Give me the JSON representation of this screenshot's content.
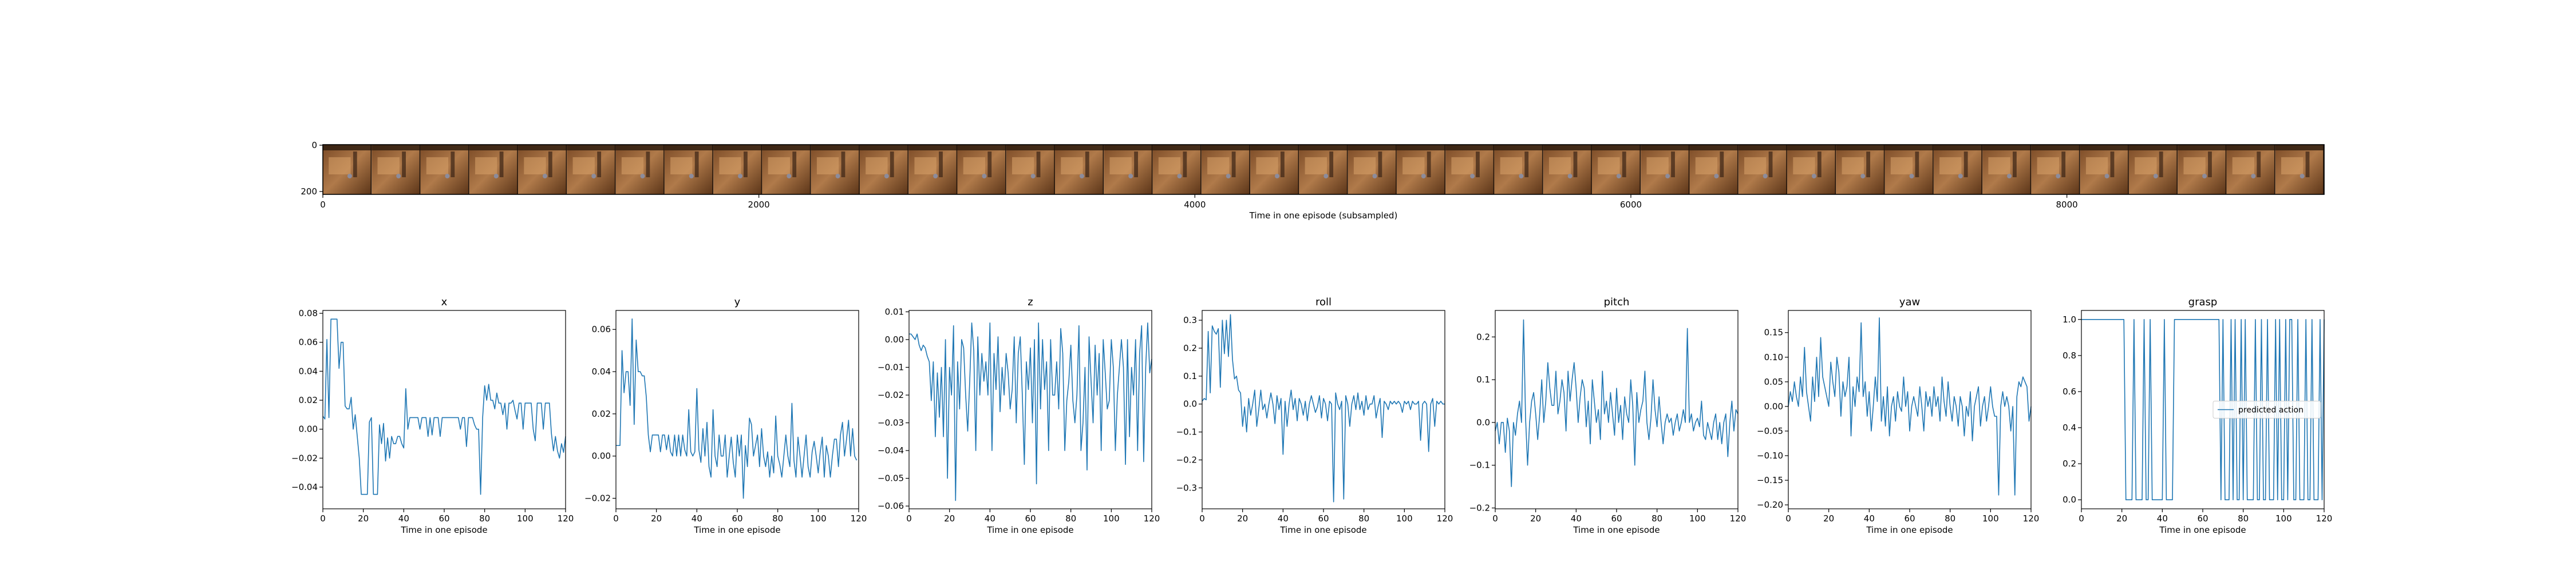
{
  "strip": {
    "xlabel": "Time in one episode (subsampled)",
    "x_ticks": [
      0,
      2000,
      4000,
      6000,
      8000
    ],
    "y_ticks": [
      0,
      200
    ],
    "frame_count": 41
  },
  "chart_data": [
    {
      "type": "line",
      "title": "x",
      "xlabel": "Time in one episode",
      "xlim": [
        0,
        120
      ],
      "ylim": [
        -0.055,
        0.082
      ],
      "x_ticks": [
        0,
        20,
        40,
        60,
        80,
        100,
        120
      ],
      "y_ticks": [
        -0.04,
        -0.02,
        0.0,
        0.02,
        0.04,
        0.06,
        0.08
      ],
      "y_tick_labels": [
        "−0.04",
        "−0.02",
        "0.00",
        "0.02",
        "0.04",
        "0.06",
        "0.08"
      ],
      "x_start": 0,
      "values": [
        0.009,
        0.007,
        0.062,
        0.008,
        0.076,
        0.076,
        0.076,
        0.076,
        0.042,
        0.06,
        0.06,
        0.016,
        0.014,
        0.014,
        0.022,
        0.0,
        0.01,
        -0.005,
        -0.02,
        -0.045,
        -0.045,
        -0.045,
        -0.045,
        0.005,
        0.008,
        -0.045,
        -0.045,
        -0.045,
        0.003,
        -0.01,
        0.004,
        -0.022,
        -0.006,
        -0.02,
        -0.005,
        -0.01,
        -0.01,
        -0.005,
        -0.005,
        -0.01,
        -0.013,
        0.028,
        0.0,
        0.008,
        0.008,
        0.008,
        0.008,
        0.008,
        0.0,
        0.008,
        0.008,
        0.008,
        -0.005,
        0.008,
        -0.004,
        0.008,
        0.008,
        0.008,
        -0.005,
        0.008,
        0.008,
        0.008,
        0.008,
        0.008,
        0.008,
        0.008,
        0.008,
        0.008,
        0.0,
        0.008,
        0.008,
        -0.012,
        0.008,
        0.008,
        0.008,
        0.003,
        0.0,
        0.0,
        -0.045,
        0.008,
        0.03,
        0.02,
        0.031,
        0.02,
        0.02,
        0.014,
        0.025,
        0.018,
        0.018,
        0.01,
        0.018,
        0.0,
        0.018,
        0.018,
        0.02,
        0.013,
        0.007,
        0.018,
        0.018,
        0.0,
        0.018,
        0.018,
        0.018,
        0.018,
        0.0,
        -0.008,
        0.018,
        0.018,
        0.018,
        0.0,
        0.018,
        0.018,
        0.018,
        -0.003,
        -0.015,
        -0.005,
        -0.015,
        -0.02,
        -0.01,
        -0.016,
        -0.005
      ]
    },
    {
      "type": "line",
      "title": "y",
      "xlabel": "Time in one episode",
      "xlim": [
        0,
        120
      ],
      "ylim": [
        -0.025,
        0.069
      ],
      "x_ticks": [
        0,
        20,
        40,
        60,
        80,
        100,
        120
      ],
      "y_ticks": [
        -0.02,
        0.0,
        0.02,
        0.04,
        0.06
      ],
      "y_tick_labels": [
        "−0.02",
        "0.00",
        "0.02",
        "0.04",
        "0.06"
      ],
      "x_start": 0,
      "values": [
        0.005,
        0.005,
        0.005,
        0.05,
        0.03,
        0.04,
        0.04,
        0.024,
        0.065,
        0.015,
        0.055,
        0.04,
        0.04,
        0.038,
        0.038,
        0.028,
        0.01,
        0.002,
        0.01,
        0.01,
        0.01,
        0.01,
        0.002,
        0.01,
        0.01,
        0.003,
        0.01,
        0.002,
        0.0,
        0.01,
        0.0,
        0.01,
        0.0,
        0.01,
        0.003,
        0.0,
        0.022,
        0.002,
        0.0,
        0.002,
        0.032,
        0.003,
        -0.003,
        0.013,
        0.0,
        0.016,
        -0.005,
        -0.01,
        0.022,
        0.0,
        -0.005,
        0.01,
        0.0,
        0.0,
        0.01,
        -0.01,
        0.0,
        0.009,
        -0.003,
        -0.01,
        0.01,
        0.0,
        0.01,
        -0.02,
        0.005,
        -0.005,
        0.018,
        0.015,
        0.0,
        0.005,
        0.01,
        -0.005,
        0.013,
        0.0,
        -0.005,
        0.002,
        -0.01,
        0.0,
        -0.008,
        0.019,
        0.0,
        -0.004,
        -0.01,
        0.0,
        0.01,
        0.0,
        -0.005,
        0.025,
        -0.002,
        -0.01,
        0.009,
        0.0,
        -0.01,
        0.0,
        0.01,
        -0.005,
        -0.01,
        0.002,
        0.007,
        0.0,
        -0.008,
        0.002,
        0.009,
        -0.01,
        0.005,
        0.0,
        -0.01,
        0.0,
        0.008,
        0.008,
        -0.005,
        0.01,
        0.016,
        0.0,
        0.008,
        0.017,
        0.0,
        0.013,
        0.0,
        -0.002
      ]
    },
    {
      "type": "line",
      "title": "z",
      "xlabel": "Time in one episode",
      "xlim": [
        0,
        120
      ],
      "ylim": [
        -0.061,
        0.0105
      ],
      "x_ticks": [
        0,
        20,
        40,
        60,
        80,
        100,
        120
      ],
      "y_ticks": [
        -0.06,
        -0.05,
        -0.04,
        -0.03,
        -0.02,
        -0.01,
        0.0,
        0.01
      ],
      "y_tick_labels": [
        "−0.06",
        "−0.05",
        "−0.04",
        "−0.03",
        "−0.02",
        "−0.01",
        "0.00",
        "0.01"
      ],
      "x_start": 0,
      "values": [
        0.002,
        0.002,
        0.001,
        0.0,
        0.002,
        -0.002,
        -0.004,
        -0.002,
        -0.003,
        -0.006,
        -0.008,
        -0.022,
        -0.008,
        -0.035,
        -0.012,
        -0.028,
        -0.01,
        -0.035,
        0.0,
        -0.05,
        -0.01,
        -0.02,
        0.005,
        -0.058,
        -0.008,
        -0.025,
        0.0,
        -0.003,
        -0.02,
        -0.033,
        -0.015,
        0.006,
        -0.004,
        -0.04,
        0.001,
        -0.02,
        -0.005,
        -0.015,
        -0.008,
        -0.02,
        0.006,
        -0.04,
        -0.005,
        -0.018,
        0.001,
        -0.026,
        -0.01,
        -0.02,
        -0.005,
        -0.012,
        -0.025,
        -0.018,
        0.001,
        -0.03,
        -0.005,
        0.001,
        -0.02,
        -0.045,
        -0.008,
        -0.018,
        -0.003,
        -0.03,
        0.0,
        -0.052,
        0.006,
        -0.025,
        0.0,
        -0.018,
        -0.008,
        -0.04,
        0.0,
        -0.02,
        -0.02,
        -0.008,
        -0.025,
        0.004,
        -0.005,
        -0.04,
        -0.022,
        -0.015,
        -0.002,
        -0.022,
        -0.03,
        -0.02,
        0.005,
        -0.04,
        -0.03,
        -0.01,
        -0.047,
        0.001,
        -0.015,
        -0.03,
        -0.002,
        -0.02,
        -0.005,
        -0.04,
        0.0,
        -0.012,
        -0.025,
        -0.022,
        0.0,
        -0.01,
        -0.04,
        -0.02,
        -0.01,
        0.0,
        -0.01,
        -0.045,
        0.0,
        -0.035,
        -0.01,
        -0.02,
        0.0,
        -0.04,
        -0.005,
        0.005,
        -0.044,
        -0.01,
        0.006,
        -0.012,
        -0.007
      ]
    },
    {
      "type": "line",
      "title": "roll",
      "xlabel": "Time in one episode",
      "xlim": [
        0,
        120
      ],
      "ylim": [
        -0.375,
        0.335
      ],
      "x_ticks": [
        0,
        20,
        40,
        60,
        80,
        100,
        120
      ],
      "y_ticks": [
        -0.3,
        -0.2,
        -0.1,
        0.0,
        0.1,
        0.2,
        0.3
      ],
      "y_tick_labels": [
        "−0.3",
        "−0.2",
        "−0.1",
        "0.0",
        "0.1",
        "0.2",
        "0.3"
      ],
      "x_start": 0,
      "values": [
        0.01,
        0.02,
        0.015,
        0.26,
        0.04,
        0.28,
        0.26,
        0.25,
        0.27,
        0.06,
        0.3,
        0.18,
        0.3,
        0.17,
        0.32,
        0.16,
        0.09,
        0.1,
        0.05,
        0.04,
        -0.08,
        -0.01,
        -0.1,
        0.02,
        -0.04,
        0.0,
        0.05,
        -0.08,
        -0.02,
        0.05,
        -0.02,
        0.0,
        -0.05,
        0.0,
        0.04,
        0.0,
        -0.07,
        0.03,
        -0.02,
        0.02,
        -0.18,
        0.01,
        -0.08,
        0.0,
        0.05,
        -0.02,
        0.02,
        -0.06,
        0.02,
        0.0,
        -0.04,
        0.01,
        -0.06,
        0.0,
        0.03,
        0.0,
        -0.03,
        -0.01,
        0.03,
        -0.05,
        0.02,
        0.0,
        -0.06,
        0.01,
        0.0,
        -0.35,
        0.04,
        0.0,
        -0.02,
        0.01,
        -0.34,
        0.03,
        0.0,
        -0.08,
        0.0,
        0.03,
        -0.02,
        0.04,
        -0.02,
        0.01,
        -0.04,
        0.03,
        -0.02,
        0.0,
        0.0,
        0.03,
        -0.05,
        -0.01,
        0.02,
        -0.12,
        0.01,
        0.0,
        -0.02,
        0.01,
        0.0,
        0.01,
        0.0,
        0.01,
        0.0,
        -0.03,
        0.01,
        0.0,
        0.01,
        -0.02,
        0.01,
        0.0,
        0.0,
        0.01,
        -0.13,
        0.0,
        0.01,
        0.0,
        -0.17,
        0.0,
        0.02,
        -0.08,
        0.01,
        0.0,
        0.01,
        0.0,
        0.0
      ]
    },
    {
      "type": "line",
      "title": "pitch",
      "xlabel": "Time in one episode",
      "xlim": [
        0,
        120
      ],
      "ylim": [
        -0.202,
        0.262
      ],
      "x_ticks": [
        0,
        20,
        40,
        60,
        80,
        100,
        120
      ],
      "y_ticks": [
        -0.2,
        -0.1,
        0.0,
        0.1,
        0.2
      ],
      "y_tick_labels": [
        "−0.2",
        "−0.1",
        "0.0",
        "0.1",
        "0.2"
      ],
      "x_start": 0,
      "values": [
        -0.02,
        0.0,
        -0.05,
        0.0,
        0.0,
        -0.07,
        0.01,
        -0.02,
        -0.15,
        0.0,
        -0.03,
        0.02,
        0.05,
        0.0,
        0.24,
        0.01,
        -0.1,
        0.0,
        0.05,
        0.07,
        0.02,
        -0.04,
        0.02,
        0.1,
        0.0,
        0.05,
        0.14,
        0.08,
        0.04,
        0.04,
        0.12,
        0.02,
        0.05,
        0.1,
        0.07,
        -0.02,
        0.12,
        0.05,
        0.1,
        0.14,
        0.08,
        0.0,
        0.06,
        0.1,
        0.08,
        -0.01,
        0.05,
        -0.05,
        0.1,
        0.05,
        0.0,
        0.03,
        -0.04,
        0.12,
        0.02,
        0.05,
        0.0,
        0.07,
        0.02,
        -0.03,
        0.08,
        0.0,
        0.04,
        -0.04,
        0.06,
        0.02,
        0.0,
        0.1,
        0.04,
        -0.1,
        0.07,
        0.0,
        0.03,
        0.05,
        0.12,
        0.0,
        -0.04,
        0.01,
        0.1,
        0.03,
        -0.01,
        0.06,
        0.0,
        -0.05,
        0.0,
        0.02,
        0.0,
        0.01,
        -0.03,
        0.0,
        0.02,
        -0.02,
        0.0,
        0.03,
        0.0,
        0.22,
        0.0,
        0.02,
        -0.02,
        0.0,
        0.01,
        -0.01,
        0.05,
        -0.03,
        -0.04,
        0.0,
        -0.02,
        -0.04,
        0.0,
        0.02,
        -0.04,
        0.0,
        -0.05,
        0.0,
        0.02,
        -0.08,
        0.0,
        0.05,
        -0.02,
        0.03,
        0.02
      ]
    },
    {
      "type": "line",
      "title": "yaw",
      "xlabel": "Time in one episode",
      "xlim": [
        0,
        120
      ],
      "ylim": [
        -0.208,
        0.195
      ],
      "x_ticks": [
        0,
        20,
        40,
        60,
        80,
        100,
        120
      ],
      "y_ticks": [
        -0.2,
        -0.15,
        -0.1,
        -0.05,
        0.0,
        0.05,
        0.1,
        0.15
      ],
      "y_tick_labels": [
        "−0.20",
        "−0.15",
        "−0.10",
        "−0.05",
        "0.00",
        "0.05",
        "0.10",
        "0.15"
      ],
      "x_start": 0,
      "values": [
        0.0,
        0.03,
        0.01,
        0.05,
        0.02,
        0.0,
        0.06,
        0.02,
        0.12,
        0.03,
        0.0,
        -0.03,
        0.06,
        0.01,
        0.1,
        0.02,
        0.14,
        0.06,
        0.04,
        0.02,
        0.0,
        0.09,
        0.05,
        0.02,
        0.1,
        0.07,
        -0.02,
        0.05,
        0.02,
        0.04,
        0.1,
        -0.06,
        0.04,
        0.0,
        0.06,
        0.03,
        0.17,
        0.02,
        0.05,
        -0.02,
        0.03,
        -0.05,
        0.0,
        0.06,
        0.01,
        0.18,
        -0.03,
        0.02,
        -0.04,
        0.04,
        -0.06,
        0.0,
        0.02,
        -0.03,
        0.03,
        0.0,
        -0.01,
        0.06,
        0.0,
        0.03,
        -0.05,
        0.0,
        0.02,
        0.0,
        -0.02,
        0.04,
        0.0,
        -0.05,
        0.03,
        0.0,
        0.02,
        -0.02,
        0.04,
        0.0,
        0.02,
        -0.03,
        0.06,
        0.01,
        -0.02,
        0.05,
        0.0,
        -0.03,
        0.02,
        0.0,
        -0.04,
        0.02,
        0.0,
        -0.06,
        0.0,
        -0.02,
        0.03,
        -0.07,
        0.0,
        0.02,
        0.04,
        -0.04,
        0.0,
        0.02,
        -0.03,
        0.0,
        0.04,
        0.0,
        -0.02,
        -0.02,
        -0.18,
        0.0,
        0.03,
        0.0,
        0.02,
        0.0,
        -0.05,
        0.0,
        -0.18,
        0.02,
        0.05,
        0.04,
        0.06,
        0.05,
        0.04,
        -0.03,
        0.0
      ]
    },
    {
      "type": "line",
      "title": "grasp",
      "xlabel": "Time in one episode",
      "xlim": [
        0,
        120
      ],
      "ylim": [
        -0.05,
        1.05
      ],
      "x_ticks": [
        0,
        20,
        40,
        60,
        80,
        100,
        120
      ],
      "y_ticks": [
        0.0,
        0.2,
        0.4,
        0.6,
        0.8,
        1.0
      ],
      "y_tick_labels": [
        "0.0",
        "0.2",
        "0.4",
        "0.6",
        "0.8",
        "1.0"
      ],
      "legend": "predicted action",
      "legend_loc": "center right",
      "x_start": 0,
      "values": [
        1,
        1,
        1,
        1,
        1,
        1,
        1,
        1,
        1,
        1,
        1,
        1,
        1,
        1,
        1,
        1,
        1,
        1,
        1,
        1,
        1,
        1,
        0,
        0,
        0,
        0,
        1,
        0,
        0,
        0,
        0,
        1,
        0,
        0,
        1,
        0,
        0,
        0,
        0,
        0,
        0,
        1,
        0,
        0,
        0,
        0,
        1,
        1,
        1,
        1,
        1,
        1,
        1,
        1,
        1,
        1,
        1,
        1,
        1,
        1,
        1,
        1,
        1,
        1,
        1,
        1,
        1,
        1,
        1,
        0,
        1,
        0,
        0,
        0,
        1,
        0,
        1,
        0,
        0,
        1,
        0,
        1,
        0,
        0,
        0,
        0,
        1,
        0,
        0,
        1,
        0,
        0,
        1,
        0,
        0,
        0,
        1,
        0,
        1,
        0,
        0,
        1,
        0,
        1,
        1,
        0,
        0,
        1,
        0,
        0,
        0,
        1,
        0,
        0,
        1,
        0,
        0,
        0,
        1,
        0,
        1
      ]
    }
  ]
}
